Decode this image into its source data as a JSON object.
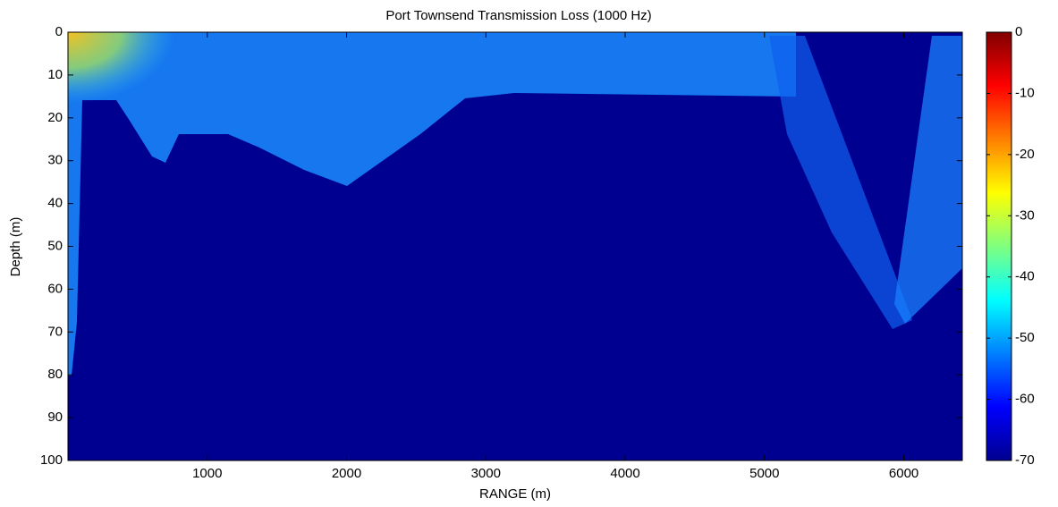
{
  "chart_data": {
    "type": "heatmap",
    "title": "Port Townsend Transmission Loss (1000 Hz)",
    "xlabel": "RANGE (m)",
    "ylabel": "Depth (m)",
    "xlim": [
      0,
      6420
    ],
    "xticks": [
      1000,
      2000,
      3000,
      4000,
      5000,
      6000
    ],
    "ylim": [
      0,
      100
    ],
    "yticks": [
      0,
      10,
      20,
      30,
      40,
      50,
      60,
      70,
      80,
      90,
      100
    ],
    "yreversed": true,
    "colorbar": {
      "lim": [
        -70,
        0
      ],
      "ticks": [
        0,
        -10,
        -20,
        -30,
        -40,
        -50,
        -60,
        -70
      ],
      "colormap": "jet"
    }
  }
}
